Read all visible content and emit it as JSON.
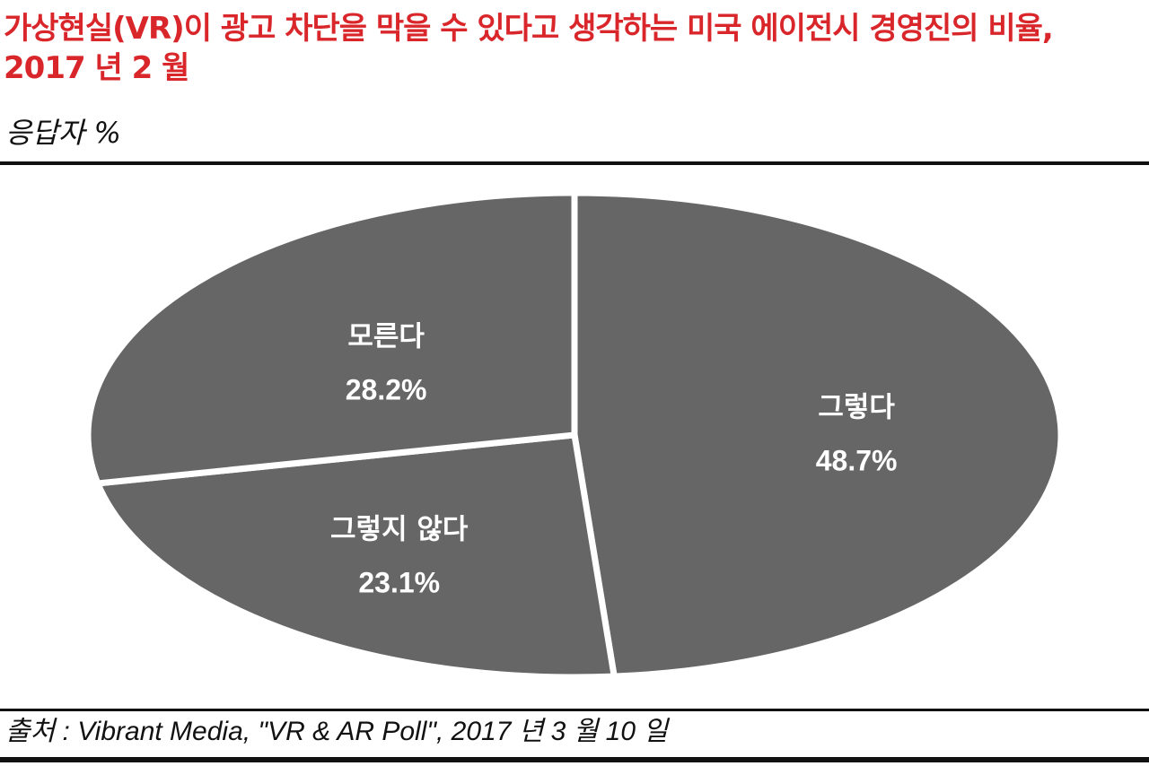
{
  "header": {
    "title": "가상현실(VR)이 광고 차단을 막을 수 있다고 생각하는 미국 에이전시 경영진의 비율, 2017 년 2 월",
    "subtitle": "응답자 %"
  },
  "footer": {
    "source": "출처 : Vibrant Media, \"VR & AR Poll\", 2017 년 3 월 10 일"
  },
  "chart_data": {
    "type": "pie",
    "unit": "%",
    "slices": [
      {
        "label": "그렇다",
        "value": 48.7,
        "value_label": "48.7%"
      },
      {
        "label": "그렇지 않다",
        "value": 23.1,
        "value_label": "23.1%"
      },
      {
        "label": "모른다",
        "value": 28.2,
        "value_label": "28.2%"
      }
    ],
    "colors": {
      "slice": "#666666",
      "separator": "#ffffff",
      "label": "#ffffff"
    },
    "legend": "none"
  }
}
